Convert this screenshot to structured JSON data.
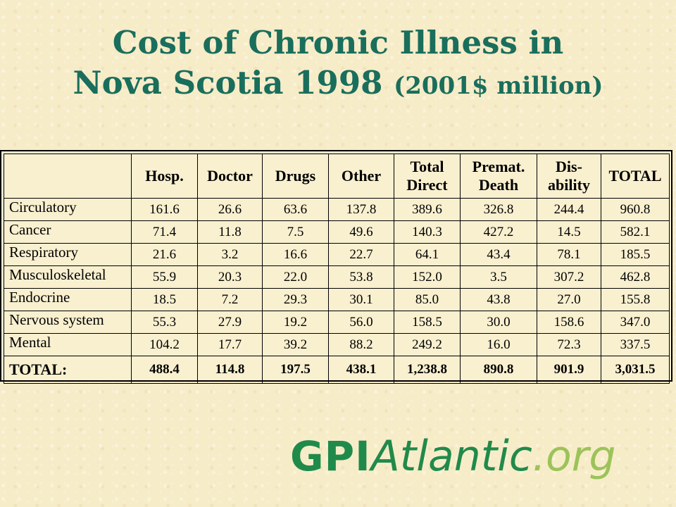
{
  "title": {
    "line1": "Cost of Chronic Illness in",
    "line2_main": "Nova Scotia 1998",
    "line2_unit": "(2001$ million)"
  },
  "table": {
    "headers": [
      "",
      "Hosp.",
      "Doctor",
      "Drugs",
      "Other",
      "Total Direct",
      "Premat. Death",
      "Dis-ability",
      "TOTAL"
    ],
    "header_lines": [
      [
        ""
      ],
      [
        "Hosp."
      ],
      [
        "Doctor"
      ],
      [
        "Drugs"
      ],
      [
        "Other"
      ],
      [
        "Total",
        "Direct"
      ],
      [
        "Premat.",
        "Death"
      ],
      [
        "Dis-",
        "ability"
      ],
      [
        "TOTAL"
      ]
    ],
    "rows": [
      [
        "Circulatory",
        "161.6",
        "26.6",
        "63.6",
        "137.8",
        "389.6",
        "326.8",
        "244.4",
        "960.8"
      ],
      [
        "Cancer",
        "71.4",
        "11.8",
        "7.5",
        "49.6",
        "140.3",
        "427.2",
        "14.5",
        "582.1"
      ],
      [
        "Respiratory",
        "21.6",
        "3.2",
        "16.6",
        "22.7",
        "64.1",
        "43.4",
        "78.1",
        "185.5"
      ],
      [
        "Musculoskeletal",
        "55.9",
        "20.3",
        "22.0",
        "53.8",
        "152.0",
        "3.5",
        "307.2",
        "462.8"
      ],
      [
        "Endocrine",
        "18.5",
        "7.2",
        "29.3",
        "30.1",
        "85.0",
        "43.8",
        "27.0",
        "155.8"
      ],
      [
        "Nervous system",
        "55.3",
        "27.9",
        "19.2",
        "56.0",
        "158.5",
        "30.0",
        "158.6",
        "347.0"
      ],
      [
        "Mental",
        "104.2",
        "17.7",
        "39.2",
        "88.2",
        "249.2",
        "16.0",
        "72.3",
        "337.5"
      ]
    ],
    "total_row": [
      "TOTAL:",
      "488.4",
      "114.8",
      "197.5",
      "438.1",
      "1,238.8",
      "890.8",
      "901.9",
      "3,031.5"
    ]
  },
  "logo": {
    "part1": "GPI",
    "part2": "Atlantic",
    "part3": ".org"
  },
  "colors": {
    "title": "#1a6e5c",
    "background": "#f7ecc8",
    "logo_green": "#208a4b",
    "logo_light_green": "#9cc35a"
  }
}
